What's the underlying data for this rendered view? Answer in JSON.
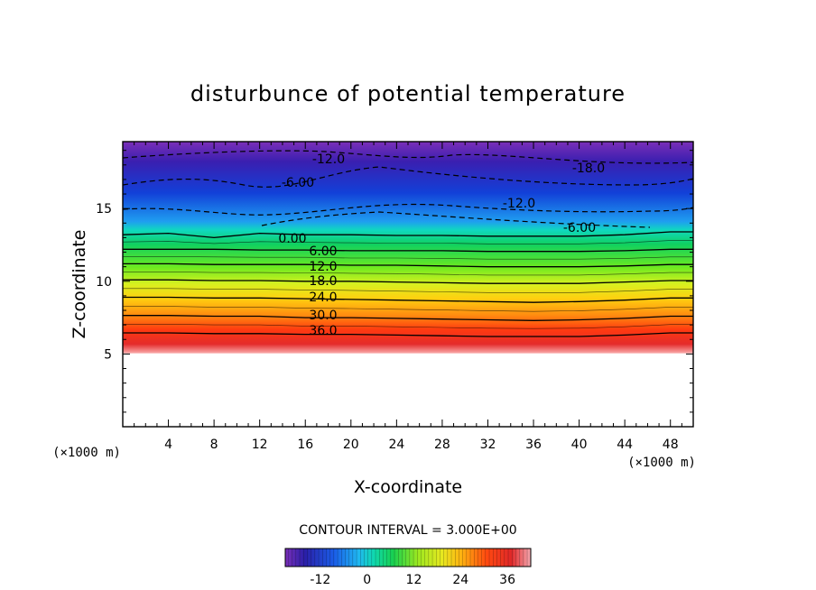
{
  "chart_data": {
    "type": "heatmap",
    "title": "disturbunce of potential temperature",
    "xlabel": "X-coordinate",
    "ylabel": "Z-coordinate",
    "x_unit": "(×1000 m)",
    "y_unit": "(×1000 m)",
    "xlim": [
      0,
      50
    ],
    "ylim": [
      0,
      19.6
    ],
    "x_ticks": [
      "4",
      "8",
      "12",
      "16",
      "20",
      "24",
      "28",
      "32",
      "36",
      "40",
      "44",
      "48"
    ],
    "y_ticks": [
      "5",
      "10",
      "15"
    ],
    "contour_interval_text": "CONTOUR INTERVAL = 3.000E+00",
    "colorbar": {
      "min": -21,
      "max": 42,
      "tick_labels": [
        "-12",
        "0",
        "12",
        "24",
        "36"
      ]
    },
    "series": [
      {
        "name": "36.0",
        "values": [
          6.45,
          6.45,
          6.4,
          6.4,
          6.35,
          6.35,
          6.3,
          6.25,
          6.2,
          6.2,
          6.2,
          6.3,
          6.45
        ]
      },
      {
        "name": "30.0",
        "values": [
          7.65,
          7.65,
          7.6,
          7.6,
          7.5,
          7.5,
          7.45,
          7.4,
          7.35,
          7.3,
          7.35,
          7.45,
          7.6
        ]
      },
      {
        "name": "24.0",
        "values": [
          8.9,
          8.9,
          8.85,
          8.85,
          8.8,
          8.75,
          8.7,
          8.65,
          8.6,
          8.55,
          8.6,
          8.7,
          8.85
        ]
      },
      {
        "name": "18.0",
        "values": [
          10.1,
          10.1,
          10.05,
          10.05,
          10.0,
          10.0,
          9.95,
          9.9,
          9.85,
          9.85,
          9.85,
          9.95,
          10.05
        ]
      },
      {
        "name": "12.0",
        "values": [
          11.2,
          11.2,
          11.15,
          11.15,
          11.15,
          11.1,
          11.1,
          11.05,
          11.0,
          11.0,
          11.0,
          11.05,
          11.15
        ]
      },
      {
        "name": "6.00",
        "values": [
          12.2,
          12.2,
          12.2,
          12.15,
          12.15,
          12.1,
          12.1,
          12.1,
          12.05,
          12.05,
          12.05,
          12.1,
          12.2
        ]
      },
      {
        "name": "0.00",
        "values": [
          13.2,
          13.3,
          13.0,
          13.3,
          13.2,
          13.2,
          13.15,
          13.15,
          13.1,
          13.1,
          13.1,
          13.2,
          13.4
        ]
      }
    ],
    "x": [
      0,
      4,
      8,
      12,
      16,
      20,
      24,
      28,
      32,
      36,
      40,
      44,
      48
    ],
    "annotations": [
      "-12.0",
      "-6.00",
      "-18.0",
      "-12.0",
      "-6.00"
    ],
    "grid": false,
    "legend": "colorbar-bottom"
  }
}
